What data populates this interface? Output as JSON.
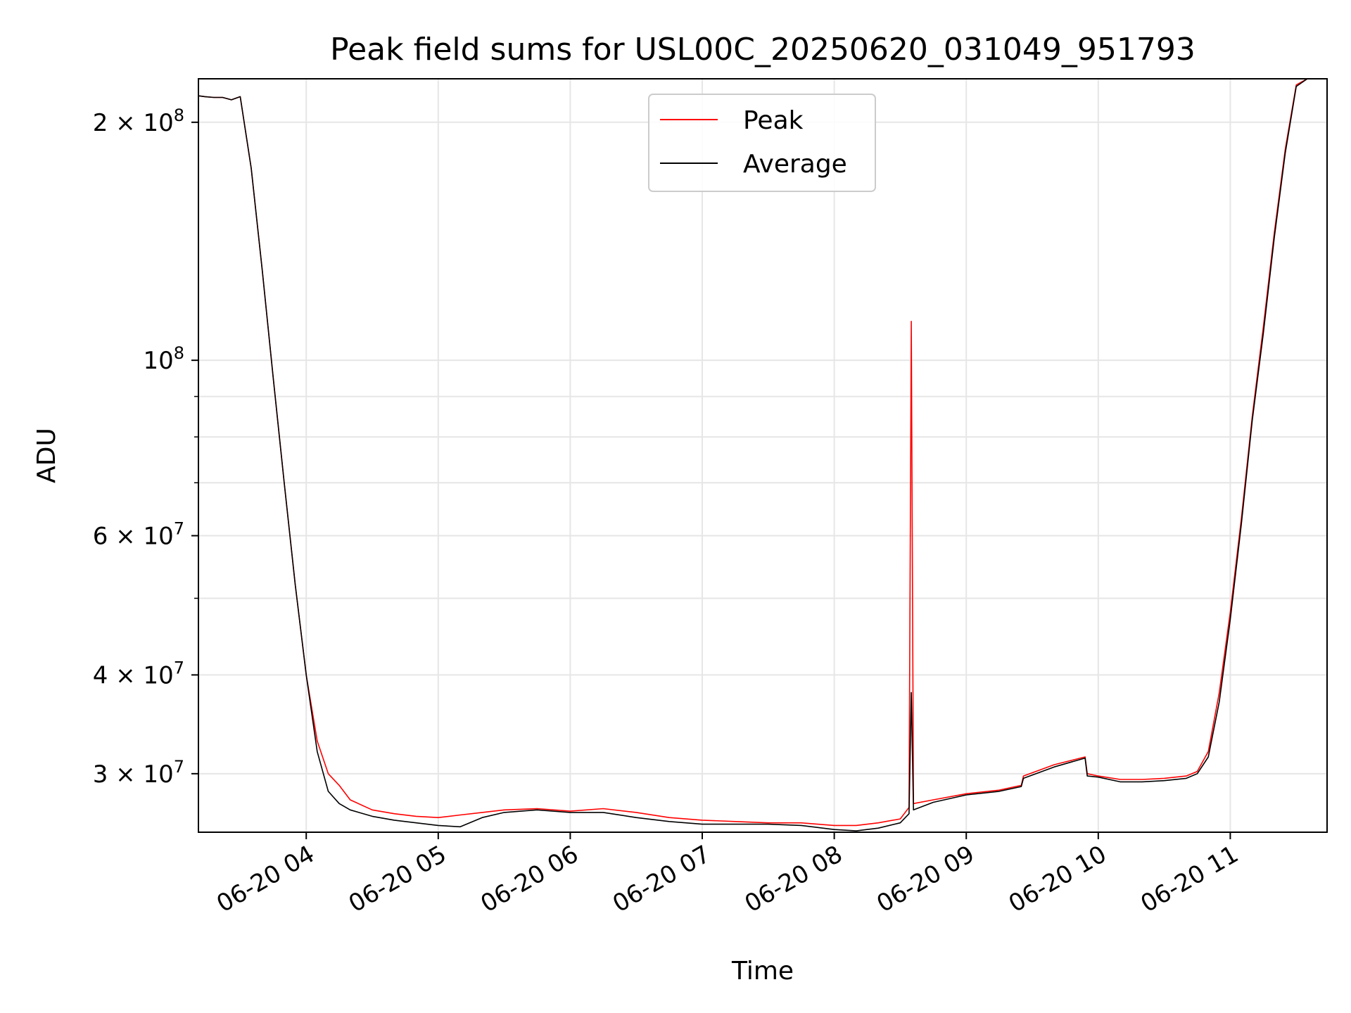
{
  "chart_data": {
    "type": "line",
    "title": "Peak field sums for USL00C_20250620_031049_951793",
    "xlabel": "Time",
    "ylabel": "ADU",
    "yscale": "log",
    "ylim": [
      25300000,
      227000000
    ],
    "xlim": [
      "2025-06-20 03:11",
      "2025-06-20 11:44"
    ],
    "grid": true,
    "legend_position": "top-center",
    "x_ticks": [
      "06-20 04",
      "06-20 05",
      "06-20 06",
      "06-20 07",
      "06-20 08",
      "06-20 09",
      "06-20 10",
      "06-20 11"
    ],
    "y_ticks": [
      {
        "base": "2",
        "exp": "8",
        "value": 200000000
      },
      {
        "base": "",
        "exp": "8",
        "value": 100000000
      },
      {
        "base": "6",
        "exp": "7",
        "value": 60000000
      },
      {
        "base": "4",
        "exp": "7",
        "value": 40000000
      },
      {
        "base": "3",
        "exp": "7",
        "value": 30000000
      }
    ],
    "series": [
      {
        "name": "Peak",
        "color": "#ff0000",
        "x": [
          "2025-06-20 03:11",
          "2025-06-20 03:14",
          "2025-06-20 03:18",
          "2025-06-20 03:22",
          "2025-06-20 03:26",
          "2025-06-20 03:30",
          "2025-06-20 03:35",
          "2025-06-20 03:40",
          "2025-06-20 03:45",
          "2025-06-20 03:50",
          "2025-06-20 03:55",
          "2025-06-20 04:00",
          "2025-06-20 04:05",
          "2025-06-20 04:10",
          "2025-06-20 04:15",
          "2025-06-20 04:20",
          "2025-06-20 04:30",
          "2025-06-20 04:40",
          "2025-06-20 04:50",
          "2025-06-20 05:00",
          "2025-06-20 05:10",
          "2025-06-20 05:20",
          "2025-06-20 05:30",
          "2025-06-20 05:45",
          "2025-06-20 06:00",
          "2025-06-20 06:15",
          "2025-06-20 06:30",
          "2025-06-20 06:45",
          "2025-06-20 07:00",
          "2025-06-20 07:15",
          "2025-06-20 07:30",
          "2025-06-20 07:45",
          "2025-06-20 08:00",
          "2025-06-20 08:10",
          "2025-06-20 08:20",
          "2025-06-20 08:30",
          "2025-06-20 08:34",
          "2025-06-20 08:35",
          "2025-06-20 08:36",
          "2025-06-20 08:45",
          "2025-06-20 09:00",
          "2025-06-20 09:15",
          "2025-06-20 09:25",
          "2025-06-20 09:26",
          "2025-06-20 09:40",
          "2025-06-20 09:54",
          "2025-06-20 09:55",
          "2025-06-20 10:00",
          "2025-06-20 10:10",
          "2025-06-20 10:20",
          "2025-06-20 10:30",
          "2025-06-20 10:40",
          "2025-06-20 10:45",
          "2025-06-20 10:50",
          "2025-06-20 10:55",
          "2025-06-20 11:00",
          "2025-06-20 11:05",
          "2025-06-20 11:10",
          "2025-06-20 11:15",
          "2025-06-20 11:20",
          "2025-06-20 11:25",
          "2025-06-20 11:30",
          "2025-06-20 11:35",
          "2025-06-20 11:44"
        ],
        "y": [
          216000000,
          215500000,
          215000000,
          215000000,
          213500000,
          215500000,
          175000000,
          130000000,
          95000000,
          70000000,
          52000000,
          40000000,
          33000000,
          30000000,
          29000000,
          27800000,
          27000000,
          26700000,
          26500000,
          26400000,
          26600000,
          26800000,
          27000000,
          27100000,
          26900000,
          27100000,
          26800000,
          26400000,
          26200000,
          26100000,
          26000000,
          26000000,
          25800000,
          25800000,
          26000000,
          26300000,
          27200000,
          112000000,
          27500000,
          27800000,
          28300000,
          28600000,
          29000000,
          29800000,
          30800000,
          31500000,
          30000000,
          29800000,
          29500000,
          29500000,
          29600000,
          29800000,
          30200000,
          32000000,
          38000000,
          48000000,
          63000000,
          85000000,
          110000000,
          145000000,
          185000000,
          223000000,
          227000000,
          227000000
        ]
      },
      {
        "name": "Average",
        "color": "#000000",
        "x": [
          "2025-06-20 03:11",
          "2025-06-20 03:14",
          "2025-06-20 03:18",
          "2025-06-20 03:22",
          "2025-06-20 03:26",
          "2025-06-20 03:30",
          "2025-06-20 03:35",
          "2025-06-20 03:40",
          "2025-06-20 03:45",
          "2025-06-20 03:50",
          "2025-06-20 03:55",
          "2025-06-20 04:00",
          "2025-06-20 04:05",
          "2025-06-20 04:10",
          "2025-06-20 04:15",
          "2025-06-20 04:20",
          "2025-06-20 04:30",
          "2025-06-20 04:40",
          "2025-06-20 04:50",
          "2025-06-20 05:00",
          "2025-06-20 05:10",
          "2025-06-20 05:20",
          "2025-06-20 05:30",
          "2025-06-20 05:45",
          "2025-06-20 06:00",
          "2025-06-20 06:15",
          "2025-06-20 06:30",
          "2025-06-20 06:45",
          "2025-06-20 07:00",
          "2025-06-20 07:15",
          "2025-06-20 07:30",
          "2025-06-20 07:45",
          "2025-06-20 08:00",
          "2025-06-20 08:10",
          "2025-06-20 08:20",
          "2025-06-20 08:30",
          "2025-06-20 08:34",
          "2025-06-20 08:35",
          "2025-06-20 08:36",
          "2025-06-20 08:45",
          "2025-06-20 09:00",
          "2025-06-20 09:15",
          "2025-06-20 09:25",
          "2025-06-20 09:26",
          "2025-06-20 09:40",
          "2025-06-20 09:54",
          "2025-06-20 09:55",
          "2025-06-20 10:00",
          "2025-06-20 10:10",
          "2025-06-20 10:20",
          "2025-06-20 10:30",
          "2025-06-20 10:40",
          "2025-06-20 10:45",
          "2025-06-20 10:50",
          "2025-06-20 10:55",
          "2025-06-20 11:00",
          "2025-06-20 11:05",
          "2025-06-20 11:10",
          "2025-06-20 11:15",
          "2025-06-20 11:20",
          "2025-06-20 11:25",
          "2025-06-20 11:30",
          "2025-06-20 11:35",
          "2025-06-20 11:44"
        ],
        "y": [
          216000000,
          215500000,
          215000000,
          215000000,
          213500000,
          215500000,
          175000000,
          130000000,
          95000000,
          70000000,
          52000000,
          40000000,
          32000000,
          28500000,
          27500000,
          27000000,
          26500000,
          26200000,
          26000000,
          25800000,
          25700000,
          26400000,
          26800000,
          27000000,
          26800000,
          26800000,
          26400000,
          26100000,
          25900000,
          25900000,
          25900000,
          25800000,
          25500000,
          25400000,
          25600000,
          26000000,
          26700000,
          38000000,
          27000000,
          27600000,
          28200000,
          28500000,
          28900000,
          29600000,
          30600000,
          31400000,
          29800000,
          29700000,
          29300000,
          29300000,
          29400000,
          29600000,
          30000000,
          31500000,
          37000000,
          47000000,
          62000000,
          84000000,
          108000000,
          143000000,
          183000000,
          222000000,
          227000000,
          227000000
        ]
      }
    ]
  }
}
